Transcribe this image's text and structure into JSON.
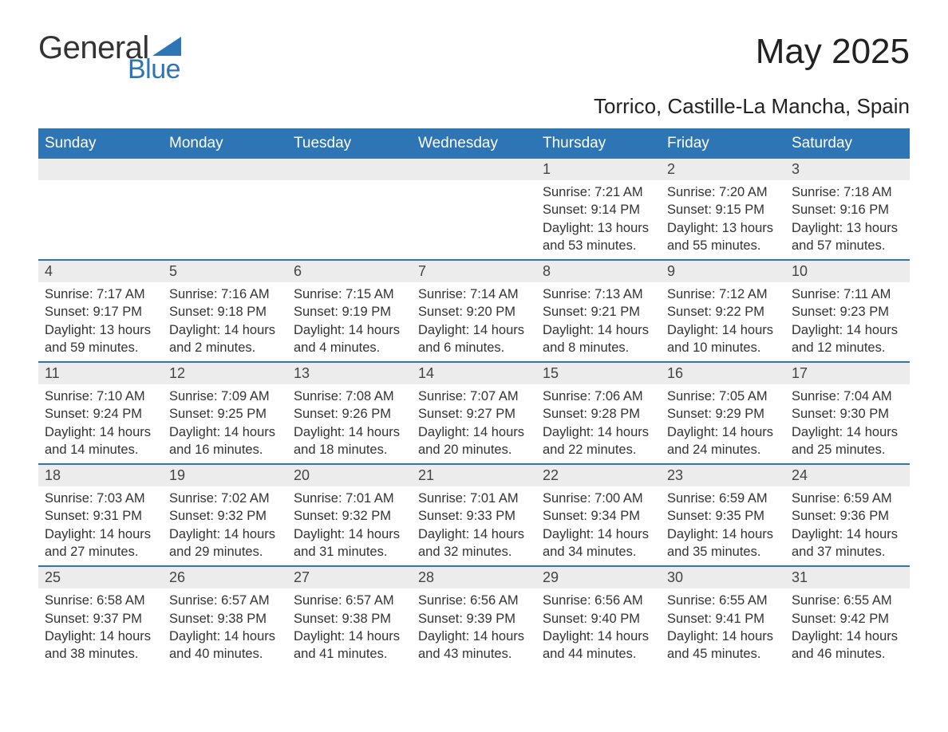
{
  "logo": {
    "text1": "General",
    "text2": "Blue",
    "accent_color": "#2e75b6",
    "text_color": "#333333"
  },
  "title": "May 2025",
  "subtitle": "Torrico, Castille-La Mancha, Spain",
  "colors": {
    "header_bg": "#2e75b6",
    "header_text": "#ffffff",
    "day_head_bg": "#ececec",
    "day_head_border": "#2e75b6",
    "body_text": "#333333",
    "page_bg": "#ffffff"
  },
  "fonts": {
    "title_size_pt": 33,
    "subtitle_size_pt": 20,
    "header_size_pt": 14,
    "daynum_size_pt": 13,
    "body_size_pt": 12
  },
  "weekdays": [
    "Sunday",
    "Monday",
    "Tuesday",
    "Wednesday",
    "Thursday",
    "Friday",
    "Saturday"
  ],
  "blank_leading_cells": 4,
  "days": [
    {
      "n": "1",
      "sunrise": "7:21 AM",
      "sunset": "9:14 PM",
      "daylight": "13 hours and 53 minutes."
    },
    {
      "n": "2",
      "sunrise": "7:20 AM",
      "sunset": "9:15 PM",
      "daylight": "13 hours and 55 minutes."
    },
    {
      "n": "3",
      "sunrise": "7:18 AM",
      "sunset": "9:16 PM",
      "daylight": "13 hours and 57 minutes."
    },
    {
      "n": "4",
      "sunrise": "7:17 AM",
      "sunset": "9:17 PM",
      "daylight": "13 hours and 59 minutes."
    },
    {
      "n": "5",
      "sunrise": "7:16 AM",
      "sunset": "9:18 PM",
      "daylight": "14 hours and 2 minutes."
    },
    {
      "n": "6",
      "sunrise": "7:15 AM",
      "sunset": "9:19 PM",
      "daylight": "14 hours and 4 minutes."
    },
    {
      "n": "7",
      "sunrise": "7:14 AM",
      "sunset": "9:20 PM",
      "daylight": "14 hours and 6 minutes."
    },
    {
      "n": "8",
      "sunrise": "7:13 AM",
      "sunset": "9:21 PM",
      "daylight": "14 hours and 8 minutes."
    },
    {
      "n": "9",
      "sunrise": "7:12 AM",
      "sunset": "9:22 PM",
      "daylight": "14 hours and 10 minutes."
    },
    {
      "n": "10",
      "sunrise": "7:11 AM",
      "sunset": "9:23 PM",
      "daylight": "14 hours and 12 minutes."
    },
    {
      "n": "11",
      "sunrise": "7:10 AM",
      "sunset": "9:24 PM",
      "daylight": "14 hours and 14 minutes."
    },
    {
      "n": "12",
      "sunrise": "7:09 AM",
      "sunset": "9:25 PM",
      "daylight": "14 hours and 16 minutes."
    },
    {
      "n": "13",
      "sunrise": "7:08 AM",
      "sunset": "9:26 PM",
      "daylight": "14 hours and 18 minutes."
    },
    {
      "n": "14",
      "sunrise": "7:07 AM",
      "sunset": "9:27 PM",
      "daylight": "14 hours and 20 minutes."
    },
    {
      "n": "15",
      "sunrise": "7:06 AM",
      "sunset": "9:28 PM",
      "daylight": "14 hours and 22 minutes."
    },
    {
      "n": "16",
      "sunrise": "7:05 AM",
      "sunset": "9:29 PM",
      "daylight": "14 hours and 24 minutes."
    },
    {
      "n": "17",
      "sunrise": "7:04 AM",
      "sunset": "9:30 PM",
      "daylight": "14 hours and 25 minutes."
    },
    {
      "n": "18",
      "sunrise": "7:03 AM",
      "sunset": "9:31 PM",
      "daylight": "14 hours and 27 minutes."
    },
    {
      "n": "19",
      "sunrise": "7:02 AM",
      "sunset": "9:32 PM",
      "daylight": "14 hours and 29 minutes."
    },
    {
      "n": "20",
      "sunrise": "7:01 AM",
      "sunset": "9:32 PM",
      "daylight": "14 hours and 31 minutes."
    },
    {
      "n": "21",
      "sunrise": "7:01 AM",
      "sunset": "9:33 PM",
      "daylight": "14 hours and 32 minutes."
    },
    {
      "n": "22",
      "sunrise": "7:00 AM",
      "sunset": "9:34 PM",
      "daylight": "14 hours and 34 minutes."
    },
    {
      "n": "23",
      "sunrise": "6:59 AM",
      "sunset": "9:35 PM",
      "daylight": "14 hours and 35 minutes."
    },
    {
      "n": "24",
      "sunrise": "6:59 AM",
      "sunset": "9:36 PM",
      "daylight": "14 hours and 37 minutes."
    },
    {
      "n": "25",
      "sunrise": "6:58 AM",
      "sunset": "9:37 PM",
      "daylight": "14 hours and 38 minutes."
    },
    {
      "n": "26",
      "sunrise": "6:57 AM",
      "sunset": "9:38 PM",
      "daylight": "14 hours and 40 minutes."
    },
    {
      "n": "27",
      "sunrise": "6:57 AM",
      "sunset": "9:38 PM",
      "daylight": "14 hours and 41 minutes."
    },
    {
      "n": "28",
      "sunrise": "6:56 AM",
      "sunset": "9:39 PM",
      "daylight": "14 hours and 43 minutes."
    },
    {
      "n": "29",
      "sunrise": "6:56 AM",
      "sunset": "9:40 PM",
      "daylight": "14 hours and 44 minutes."
    },
    {
      "n": "30",
      "sunrise": "6:55 AM",
      "sunset": "9:41 PM",
      "daylight": "14 hours and 45 minutes."
    },
    {
      "n": "31",
      "sunrise": "6:55 AM",
      "sunset": "9:42 PM",
      "daylight": "14 hours and 46 minutes."
    }
  ],
  "labels": {
    "sunrise": "Sunrise: ",
    "sunset": "Sunset: ",
    "daylight": "Daylight: "
  }
}
